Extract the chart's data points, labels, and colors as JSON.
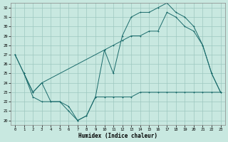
{
  "xlabel": "Humidex (Indice chaleur)",
  "bg_color": "#c8e8e0",
  "grid_color": "#9dc8c0",
  "line_color": "#1a6b6b",
  "xlim": [
    -0.5,
    23.5
  ],
  "ylim": [
    19.5,
    32.5
  ],
  "yticks": [
    20,
    21,
    22,
    23,
    24,
    25,
    26,
    27,
    28,
    29,
    30,
    31,
    32
  ],
  "xticks": [
    0,
    1,
    2,
    3,
    4,
    5,
    6,
    7,
    8,
    9,
    10,
    11,
    12,
    13,
    14,
    15,
    16,
    17,
    18,
    19,
    20,
    21,
    22,
    23
  ],
  "line1_x": [
    0,
    1,
    2,
    3,
    4,
    5,
    6,
    7,
    8,
    9,
    10,
    11,
    12,
    13,
    14,
    15,
    16,
    17,
    18,
    19,
    20,
    21,
    22,
    23
  ],
  "line1_y": [
    27,
    25,
    23,
    24,
    22,
    22,
    21.5,
    20,
    20.5,
    22.5,
    27.5,
    25,
    29,
    31,
    31.5,
    31.5,
    32,
    32.5,
    31.5,
    31,
    30,
    28,
    25,
    23
  ],
  "line2_x": [
    0,
    1,
    2,
    3,
    10,
    11,
    12,
    13,
    14,
    15,
    16,
    17,
    18,
    19,
    20,
    21,
    22,
    23
  ],
  "line2_y": [
    27,
    25,
    23,
    24,
    27.5,
    28,
    28.5,
    29,
    29,
    29.5,
    29.5,
    31.5,
    31,
    30,
    29.5,
    28,
    25,
    23
  ],
  "line3_x": [
    1,
    2,
    3,
    4,
    5,
    6,
    7,
    8,
    9,
    10,
    11,
    12,
    13,
    14,
    15,
    16,
    17,
    18,
    19,
    20,
    21,
    22,
    23
  ],
  "line3_y": [
    25,
    22.5,
    22,
    22,
    22,
    21,
    20,
    20.5,
    22.5,
    22.5,
    22.5,
    22.5,
    22.5,
    23,
    23,
    23,
    23,
    23,
    23,
    23,
    23,
    23,
    23
  ]
}
